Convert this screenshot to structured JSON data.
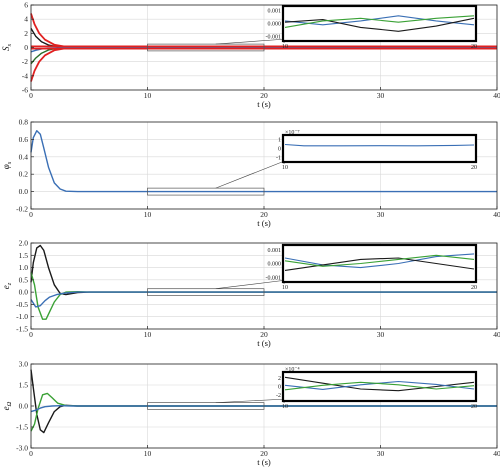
{
  "colors": {
    "blue": "#3a6fb5",
    "black": "#1a1a1a",
    "green": "#3aa135",
    "dark_green": "#2a6e2a",
    "red": "#e02020",
    "grid": "#d8d8d8"
  },
  "chart_data": [
    {
      "type": "line",
      "ylabel": "S_s",
      "ylabel_main": "S",
      "ylabel_sub": "s",
      "xlabel": "t (s)",
      "xlim": [
        0,
        40
      ],
      "ylim": [
        -6,
        6
      ],
      "xticks": [
        "0",
        "10",
        "20",
        "30",
        "40"
      ],
      "yticks": [
        "6",
        "4",
        "2",
        "0",
        "-2",
        "-4",
        "-6"
      ],
      "grid": true,
      "series": [
        {
          "color": "red",
          "x": [
            0,
            0.3,
            0.7,
            1.2,
            2,
            3,
            4,
            6,
            40
          ],
          "y": [
            4.8,
            3.3,
            2.0,
            1.1,
            0.4,
            0.1,
            0.02,
            0,
            0
          ]
        },
        {
          "color": "red",
          "x": [
            0,
            0.3,
            0.7,
            1.2,
            2,
            3,
            4,
            6,
            40
          ],
          "y": [
            -4.8,
            -3.3,
            -2.0,
            -1.1,
            -0.4,
            -0.1,
            -0.02,
            0,
            0
          ]
        },
        {
          "color": "black",
          "x": [
            0,
            0.4,
            0.9,
            1.5,
            2.3,
            3.5,
            5,
            40
          ],
          "y": [
            2.7,
            1.6,
            0.8,
            0.35,
            0.1,
            0.02,
            0,
            0
          ]
        },
        {
          "color": "dark_green",
          "x": [
            0,
            0.4,
            0.9,
            1.5,
            2.3,
            3.5,
            5,
            40
          ],
          "y": [
            -2.3,
            -1.5,
            -0.8,
            -0.35,
            -0.1,
            -0.02,
            0,
            0
          ]
        },
        {
          "color": "blue",
          "x": [
            0,
            0.4,
            0.9,
            1.5,
            2.5,
            4,
            40
          ],
          "y": [
            -0.6,
            -0.4,
            -0.2,
            -0.1,
            -0.03,
            0,
            0
          ]
        },
        {
          "color": "red",
          "x": [
            0,
            40
          ],
          "y": [
            -0.15,
            -0.15
          ]
        },
        {
          "color": "red",
          "x": [
            0,
            40
          ],
          "y": [
            0.15,
            0.15
          ]
        }
      ],
      "inset": {
        "xticks": [
          "10",
          "20"
        ],
        "yticks": [
          "0.001",
          "0.000",
          "-0.001"
        ],
        "ylim": [
          -0.0012,
          0.0012
        ],
        "series": [
          {
            "color": "blue",
            "x": [
              10,
              12,
              14,
              16,
              18,
              20
            ],
            "y": [
              0.0002,
              -0.0001,
              0.0002,
              0.0006,
              0.0002,
              -0.0001
            ]
          },
          {
            "color": "black",
            "x": [
              10,
              12,
              14,
              16,
              18,
              20
            ],
            "y": [
              0.0001,
              0.0003,
              -0.0003,
              -0.0006,
              -0.0002,
              0.0004
            ]
          },
          {
            "color": "green",
            "x": [
              10,
              12,
              14,
              16,
              18,
              20
            ],
            "y": [
              -0.0003,
              0.0002,
              0.0004,
              0.0001,
              0.0004,
              0.0006
            ]
          }
        ]
      }
    },
    {
      "type": "line",
      "ylabel": "φ_s",
      "ylabel_main": "φ",
      "ylabel_sub": "s",
      "xlabel": "t (s)",
      "xlim": [
        0,
        40
      ],
      "ylim": [
        -0.2,
        0.8
      ],
      "xticks": [
        "0",
        "10",
        "20",
        "30",
        "40"
      ],
      "yticks": [
        "0.8",
        "0.6",
        "0.4",
        "0.2",
        "0.0",
        "-0.2"
      ],
      "grid": true,
      "series": [
        {
          "color": "blue",
          "x": [
            0,
            0.2,
            0.5,
            0.8,
            1.1,
            1.5,
            2,
            2.5,
            3,
            4,
            40
          ],
          "y": [
            0.45,
            0.62,
            0.7,
            0.66,
            0.5,
            0.28,
            0.1,
            0.03,
            0.005,
            0,
            0
          ]
        }
      ],
      "inset": {
        "xticks": [
          "10",
          "20"
        ],
        "yticks": [
          "1",
          "0",
          "-1"
        ],
        "yexp": "×10⁻⁷",
        "ylim": [
          -1.3,
          1.3
        ],
        "series": [
          {
            "color": "blue",
            "x": [
              10,
              11,
              13,
              15,
              17,
              19,
              20
            ],
            "y": [
              0.45,
              0.3,
              0.3,
              0.32,
              0.3,
              0.35,
              0.4
            ]
          }
        ]
      }
    },
    {
      "type": "line",
      "ylabel": "e_z",
      "ylabel_main": "e",
      "ylabel_sub": "z",
      "xlabel": "t (s)",
      "xlim": [
        0,
        40
      ],
      "ylim": [
        -1.5,
        2.0
      ],
      "xticks": [
        "0",
        "10",
        "20",
        "30",
        "40"
      ],
      "yticks": [
        "2.0",
        "1.5",
        "1.0",
        "0.5",
        "0.0",
        "-0.5",
        "-1.0",
        "-1.5"
      ],
      "grid": true,
      "series": [
        {
          "color": "black",
          "x": [
            0,
            0.2,
            0.5,
            0.8,
            1.1,
            1.5,
            2,
            2.5,
            3,
            4,
            5,
            40
          ],
          "y": [
            0.4,
            1.2,
            1.8,
            1.9,
            1.7,
            1.0,
            0.3,
            -0.05,
            -0.1,
            -0.02,
            0,
            0
          ]
        },
        {
          "color": "green",
          "x": [
            0,
            0.3,
            0.6,
            1.0,
            1.3,
            1.6,
            2,
            2.5,
            3,
            4,
            5,
            40
          ],
          "y": [
            0.8,
            0.3,
            -0.6,
            -1.1,
            -1.1,
            -0.8,
            -0.4,
            -0.1,
            0,
            0.02,
            0,
            0
          ]
        },
        {
          "color": "blue",
          "x": [
            0,
            0.4,
            0.8,
            1.2,
            1.6,
            2.2,
            3,
            4,
            40
          ],
          "y": [
            -0.3,
            -0.6,
            -0.55,
            -0.35,
            -0.2,
            -0.1,
            -0.03,
            0,
            0
          ]
        }
      ],
      "inset": {
        "xticks": [
          "10",
          "20"
        ],
        "yticks": [
          "0.001",
          "0.000",
          "-0.001"
        ],
        "ylim": [
          -0.0012,
          0.0012
        ],
        "series": [
          {
            "color": "blue",
            "x": [
              10,
              12,
              14,
              16,
              18,
              20
            ],
            "y": [
              0.0004,
              -0.0001,
              -0.0003,
              0.0,
              0.0005,
              0.0007
            ]
          },
          {
            "color": "black",
            "x": [
              10,
              12,
              14,
              16,
              18,
              20
            ],
            "y": [
              -0.0005,
              -0.0001,
              0.0003,
              0.0004,
              0.0,
              -0.0004
            ]
          },
          {
            "color": "green",
            "x": [
              10,
              12,
              14,
              16,
              18,
              20
            ],
            "y": [
              0.0002,
              -0.0002,
              0.0,
              0.0003,
              0.0006,
              0.0003
            ]
          }
        ]
      }
    },
    {
      "type": "line",
      "ylabel": "e_Ω",
      "ylabel_main": "e",
      "ylabel_sub": "Ω",
      "xlabel": "t (s)",
      "xlim": [
        0,
        40
      ],
      "ylim": [
        -3.0,
        3.0
      ],
      "xticks": [
        "0",
        "10",
        "20",
        "30",
        "40"
      ],
      "yticks": [
        "3.0",
        "1.5",
        "0.0",
        "-1.5",
        "-3.0"
      ],
      "grid": true,
      "series": [
        {
          "color": "black",
          "x": [
            0,
            0.2,
            0.5,
            0.8,
            1.1,
            1.5,
            2,
            2.5,
            3,
            4,
            5,
            40
          ],
          "y": [
            2.6,
            1.3,
            -0.6,
            -1.7,
            -1.9,
            -1.2,
            -0.4,
            -0.05,
            0.05,
            0,
            0,
            0
          ]
        },
        {
          "color": "green",
          "x": [
            0,
            0.3,
            0.6,
            1.0,
            1.4,
            1.8,
            2.3,
            3,
            4,
            40
          ],
          "y": [
            -1.8,
            -1.3,
            -0.2,
            0.8,
            0.9,
            0.6,
            0.2,
            0.03,
            0,
            0
          ]
        },
        {
          "color": "blue",
          "x": [
            0,
            0.4,
            0.8,
            1.2,
            1.8,
            2.5,
            3.5,
            40
          ],
          "y": [
            -0.4,
            -0.3,
            -0.15,
            -0.05,
            0,
            0.02,
            0,
            0
          ]
        }
      ],
      "inset": {
        "xticks": [
          "10",
          "20"
        ],
        "yticks": [
          "2",
          "0",
          "-2"
        ],
        "yexp": "×10⁻⁴",
        "ylim": [
          -3,
          3
        ],
        "series": [
          {
            "color": "black",
            "x": [
              10,
              12,
              14,
              16,
              18,
              20
            ],
            "y": [
              2.2,
              0.8,
              -0.6,
              -1.0,
              0.0,
              1.0
            ]
          },
          {
            "color": "blue",
            "x": [
              10,
              12,
              14,
              16,
              18,
              20
            ],
            "y": [
              0.3,
              -0.7,
              0.4,
              1.2,
              0.5,
              -0.6
            ]
          },
          {
            "color": "green",
            "x": [
              10,
              12,
              14,
              16,
              18,
              20
            ],
            "y": [
              -0.8,
              0.3,
              1.0,
              0.4,
              -0.6,
              0.2
            ]
          }
        ]
      }
    }
  ]
}
